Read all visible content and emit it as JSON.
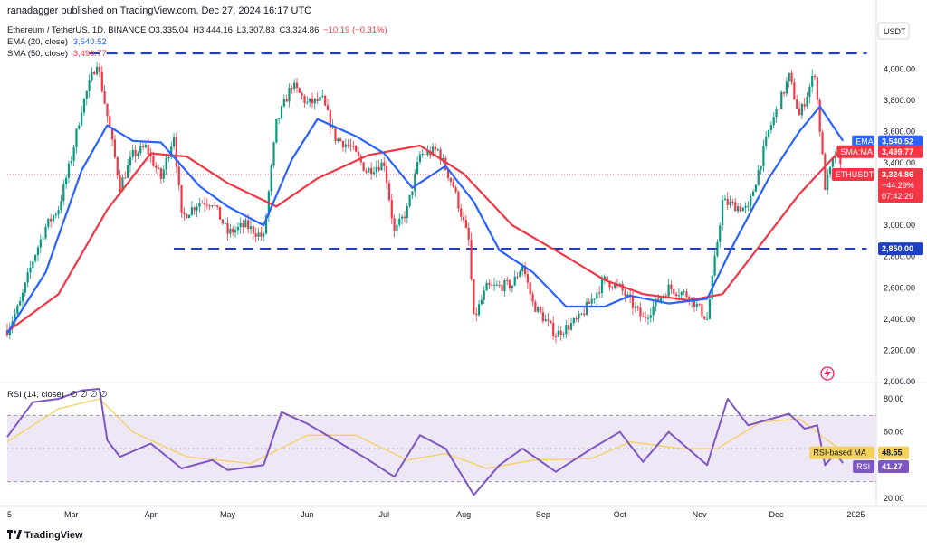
{
  "header": {
    "published_text": "ranadagger published on TradingView.com, Dec 27, 2024 16:17 UTC"
  },
  "legend": {
    "symbol": "Ethereum / TetherUS, 1D, BINANCE",
    "ohlc": {
      "o": "O3,335.04",
      "h": "H3,444.16",
      "l": "L3,307.83",
      "c": "C3,324.86",
      "chg": "−10.19 (−0.31%)"
    },
    "ema_label": "EMA (20, close)",
    "ema_value": "3,540.52",
    "sma_label": "SMA (50, close)",
    "sma_value": "3,499.77"
  },
  "rsi_legend": {
    "label": "RSI (14, close)",
    "values": "∅ ∅ ∅ ∅"
  },
  "currency_button": "USDT",
  "tv_brand": "TradingView",
  "colors": {
    "up": "#089981",
    "down": "#f23645",
    "ema": "#2962ff",
    "sma": "#f23645",
    "rsi": "#7e57c2",
    "rsi_ma": "#f5d05a",
    "rsi_band": "#ede7f6",
    "level": "#1e3fbf"
  },
  "badges": {
    "ema": {
      "label": "EMA",
      "value": "3,540.52"
    },
    "sma": {
      "label": "SMA:MA",
      "value": "3,499.77"
    },
    "price": {
      "label": "ETHUSDT",
      "value": "3,324.86",
      "change": "+44.29%",
      "countdown": "07:42:29"
    },
    "support": {
      "value": "2,850.00"
    },
    "rsi_ma": {
      "label": "RSI-based MA",
      "value": "48.55"
    },
    "rsi": {
      "label": "RSI",
      "value": "41.27"
    }
  },
  "chart_data": {
    "type": "candlestick",
    "price_axis": {
      "ylim": [
        2000,
        4100
      ],
      "ticks": [
        "2,000.00",
        "2,200.00",
        "2,400.00",
        "2,600.00",
        "2,800.00",
        "3,000.00",
        "3,200.00",
        "3,400.00",
        "3,600.00",
        "3,800.00",
        "4,000.00"
      ]
    },
    "rsi_axis": {
      "ylim": [
        15,
        90
      ],
      "ticks": [
        "20.00",
        "40.00",
        "60.00",
        "80.00"
      ],
      "bands": [
        30,
        70
      ]
    },
    "x_ticks": [
      {
        "label": "5",
        "date": "2024-02-05"
      },
      {
        "label": "Mar",
        "date": "2024-03-01"
      },
      {
        "label": "Apr",
        "date": "2024-04-01"
      },
      {
        "label": "May",
        "date": "2024-05-01"
      },
      {
        "label": "Jun",
        "date": "2024-06-01"
      },
      {
        "label": "Jul",
        "date": "2024-07-01"
      },
      {
        "label": "Aug",
        "date": "2024-08-01"
      },
      {
        "label": "Sep",
        "date": "2024-09-01"
      },
      {
        "label": "Oct",
        "date": "2024-10-01"
      },
      {
        "label": "Nov",
        "date": "2024-11-01"
      },
      {
        "label": "Dec",
        "date": "2024-12-01"
      },
      {
        "label": "2025",
        "date": "2025-01-01"
      }
    ],
    "x_range": {
      "start": "2024-02-05",
      "end": "2025-01-09"
    },
    "levels": [
      {
        "price": 4100,
        "from": "2024-03-08",
        "to": "2024-12-31"
      },
      {
        "price": 2850,
        "from": "2024-04-10",
        "to": "2024-12-31"
      }
    ],
    "closes": [
      {
        "date": "2024-02-05",
        "close": 2330
      },
      {
        "date": "2024-02-10",
        "close": 2500
      },
      {
        "date": "2024-02-15",
        "close": 2780
      },
      {
        "date": "2024-02-20",
        "close": 2990
      },
      {
        "date": "2024-02-25",
        "close": 3110
      },
      {
        "date": "2024-03-01",
        "close": 3430
      },
      {
        "date": "2024-03-05",
        "close": 3750
      },
      {
        "date": "2024-03-11",
        "close": 4050
      },
      {
        "date": "2024-03-15",
        "close": 3700
      },
      {
        "date": "2024-03-20",
        "close": 3250
      },
      {
        "date": "2024-03-25",
        "close": 3450
      },
      {
        "date": "2024-03-30",
        "close": 3500
      },
      {
        "date": "2024-04-05",
        "close": 3300
      },
      {
        "date": "2024-04-10",
        "close": 3580
      },
      {
        "date": "2024-04-13",
        "close": 3050
      },
      {
        "date": "2024-04-20",
        "close": 3150
      },
      {
        "date": "2024-04-25",
        "close": 3150
      },
      {
        "date": "2024-05-01",
        "close": 2950
      },
      {
        "date": "2024-05-08",
        "close": 3000
      },
      {
        "date": "2024-05-15",
        "close": 2920
      },
      {
        "date": "2024-05-20",
        "close": 3650
      },
      {
        "date": "2024-05-26",
        "close": 3900
      },
      {
        "date": "2024-06-01",
        "close": 3780
      },
      {
        "date": "2024-06-07",
        "close": 3800
      },
      {
        "date": "2024-06-12",
        "close": 3560
      },
      {
        "date": "2024-06-18",
        "close": 3500
      },
      {
        "date": "2024-06-24",
        "close": 3350
      },
      {
        "date": "2024-07-01",
        "close": 3400
      },
      {
        "date": "2024-07-05",
        "close": 2950
      },
      {
        "date": "2024-07-10",
        "close": 3100
      },
      {
        "date": "2024-07-15",
        "close": 3450
      },
      {
        "date": "2024-07-22",
        "close": 3480
      },
      {
        "date": "2024-07-28",
        "close": 3250
      },
      {
        "date": "2024-08-03",
        "close": 2900
      },
      {
        "date": "2024-08-05",
        "close": 2400
      },
      {
        "date": "2024-08-10",
        "close": 2600
      },
      {
        "date": "2024-08-20",
        "close": 2620
      },
      {
        "date": "2024-08-24",
        "close": 2750
      },
      {
        "date": "2024-08-28",
        "close": 2500
      },
      {
        "date": "2024-09-06",
        "close": 2300
      },
      {
        "date": "2024-09-15",
        "close": 2400
      },
      {
        "date": "2024-09-25",
        "close": 2650
      },
      {
        "date": "2024-10-01",
        "close": 2600
      },
      {
        "date": "2024-10-10",
        "close": 2400
      },
      {
        "date": "2024-10-20",
        "close": 2600
      },
      {
        "date": "2024-10-28",
        "close": 2550
      },
      {
        "date": "2024-11-04",
        "close": 2400
      },
      {
        "date": "2024-11-10",
        "close": 3150
      },
      {
        "date": "2024-11-20",
        "close": 3100
      },
      {
        "date": "2024-11-28",
        "close": 3600
      },
      {
        "date": "2024-12-06",
        "close": 3950
      },
      {
        "date": "2024-12-10",
        "close": 3700
      },
      {
        "date": "2024-12-16",
        "close": 3980
      },
      {
        "date": "2024-12-20",
        "close": 3250
      },
      {
        "date": "2024-12-24",
        "close": 3450
      },
      {
        "date": "2024-12-27",
        "close": 3324.86
      }
    ],
    "ema20": [
      {
        "date": "2024-02-05",
        "value": 2310
      },
      {
        "date": "2024-02-20",
        "value": 2700
      },
      {
        "date": "2024-03-05",
        "value": 3350
      },
      {
        "date": "2024-03-15",
        "value": 3640
      },
      {
        "date": "2024-03-25",
        "value": 3540
      },
      {
        "date": "2024-04-05",
        "value": 3530
      },
      {
        "date": "2024-04-20",
        "value": 3250
      },
      {
        "date": "2024-05-01",
        "value": 3120
      },
      {
        "date": "2024-05-15",
        "value": 3000
      },
      {
        "date": "2024-05-26",
        "value": 3420
      },
      {
        "date": "2024-06-05",
        "value": 3680
      },
      {
        "date": "2024-06-20",
        "value": 3570
      },
      {
        "date": "2024-07-01",
        "value": 3460
      },
      {
        "date": "2024-07-12",
        "value": 3240
      },
      {
        "date": "2024-07-25",
        "value": 3380
      },
      {
        "date": "2024-08-05",
        "value": 3150
      },
      {
        "date": "2024-08-15",
        "value": 2840
      },
      {
        "date": "2024-08-28",
        "value": 2700
      },
      {
        "date": "2024-09-10",
        "value": 2480
      },
      {
        "date": "2024-09-25",
        "value": 2480
      },
      {
        "date": "2024-10-05",
        "value": 2550
      },
      {
        "date": "2024-10-20",
        "value": 2500
      },
      {
        "date": "2024-11-04",
        "value": 2530
      },
      {
        "date": "2024-11-15",
        "value": 2900
      },
      {
        "date": "2024-11-28",
        "value": 3300
      },
      {
        "date": "2024-12-10",
        "value": 3600
      },
      {
        "date": "2024-12-18",
        "value": 3760
      },
      {
        "date": "2024-12-27",
        "value": 3540.52
      }
    ],
    "sma50": [
      {
        "date": "2024-02-05",
        "value": 2320
      },
      {
        "date": "2024-02-25",
        "value": 2560
      },
      {
        "date": "2024-03-15",
        "value": 3100
      },
      {
        "date": "2024-04-01",
        "value": 3460
      },
      {
        "date": "2024-04-15",
        "value": 3440
      },
      {
        "date": "2024-05-01",
        "value": 3270
      },
      {
        "date": "2024-05-20",
        "value": 3120
      },
      {
        "date": "2024-06-05",
        "value": 3300
      },
      {
        "date": "2024-06-25",
        "value": 3450
      },
      {
        "date": "2024-07-15",
        "value": 3510
      },
      {
        "date": "2024-08-01",
        "value": 3330
      },
      {
        "date": "2024-08-20",
        "value": 3000
      },
      {
        "date": "2024-09-10",
        "value": 2800
      },
      {
        "date": "2024-09-25",
        "value": 2650
      },
      {
        "date": "2024-10-10",
        "value": 2560
      },
      {
        "date": "2024-10-28",
        "value": 2520
      },
      {
        "date": "2024-11-10",
        "value": 2560
      },
      {
        "date": "2024-11-25",
        "value": 2880
      },
      {
        "date": "2024-12-10",
        "value": 3200
      },
      {
        "date": "2024-12-27",
        "value": 3499.77
      }
    ],
    "rsi14": [
      {
        "date": "2024-02-05",
        "value": 57
      },
      {
        "date": "2024-02-15",
        "value": 78
      },
      {
        "date": "2024-02-25",
        "value": 80
      },
      {
        "date": "2024-03-05",
        "value": 85
      },
      {
        "date": "2024-03-12",
        "value": 86
      },
      {
        "date": "2024-03-15",
        "value": 55
      },
      {
        "date": "2024-03-20",
        "value": 45
      },
      {
        "date": "2024-04-01",
        "value": 53
      },
      {
        "date": "2024-04-13",
        "value": 38
      },
      {
        "date": "2024-04-25",
        "value": 43
      },
      {
        "date": "2024-05-01",
        "value": 37
      },
      {
        "date": "2024-05-15",
        "value": 40
      },
      {
        "date": "2024-05-22",
        "value": 72
      },
      {
        "date": "2024-06-01",
        "value": 65
      },
      {
        "date": "2024-06-12",
        "value": 55
      },
      {
        "date": "2024-06-24",
        "value": 44
      },
      {
        "date": "2024-07-05",
        "value": 33
      },
      {
        "date": "2024-07-15",
        "value": 58
      },
      {
        "date": "2024-07-25",
        "value": 50
      },
      {
        "date": "2024-08-05",
        "value": 22
      },
      {
        "date": "2024-08-15",
        "value": 40
      },
      {
        "date": "2024-08-24",
        "value": 50
      },
      {
        "date": "2024-09-06",
        "value": 36
      },
      {
        "date": "2024-09-20",
        "value": 50
      },
      {
        "date": "2024-10-01",
        "value": 60
      },
      {
        "date": "2024-10-10",
        "value": 42
      },
      {
        "date": "2024-10-20",
        "value": 60
      },
      {
        "date": "2024-11-04",
        "value": 40
      },
      {
        "date": "2024-11-12",
        "value": 80
      },
      {
        "date": "2024-11-20",
        "value": 64
      },
      {
        "date": "2024-12-06",
        "value": 71
      },
      {
        "date": "2024-12-12",
        "value": 62
      },
      {
        "date": "2024-12-17",
        "value": 64
      },
      {
        "date": "2024-12-20",
        "value": 40
      },
      {
        "date": "2024-12-24",
        "value": 47
      },
      {
        "date": "2024-12-27",
        "value": 41.27
      }
    ],
    "rsi_ma": [
      {
        "date": "2024-02-05",
        "value": 54
      },
      {
        "date": "2024-02-25",
        "value": 74
      },
      {
        "date": "2024-03-12",
        "value": 80
      },
      {
        "date": "2024-03-25",
        "value": 60
      },
      {
        "date": "2024-04-15",
        "value": 45
      },
      {
        "date": "2024-05-10",
        "value": 41
      },
      {
        "date": "2024-06-01",
        "value": 58
      },
      {
        "date": "2024-06-20",
        "value": 58
      },
      {
        "date": "2024-07-10",
        "value": 43
      },
      {
        "date": "2024-07-25",
        "value": 47
      },
      {
        "date": "2024-08-10",
        "value": 38
      },
      {
        "date": "2024-08-28",
        "value": 43
      },
      {
        "date": "2024-09-20",
        "value": 44
      },
      {
        "date": "2024-10-05",
        "value": 54
      },
      {
        "date": "2024-10-25",
        "value": 50
      },
      {
        "date": "2024-11-08",
        "value": 50
      },
      {
        "date": "2024-11-25",
        "value": 66
      },
      {
        "date": "2024-12-10",
        "value": 68
      },
      {
        "date": "2024-12-20",
        "value": 56
      },
      {
        "date": "2024-12-27",
        "value": 48.55
      }
    ]
  }
}
